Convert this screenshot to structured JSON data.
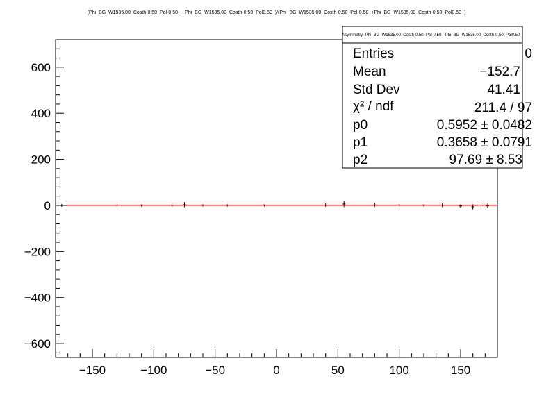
{
  "chart_data": {
    "type": "scatter",
    "title": "(Phi_BG_W1535.00_Costh-0.50_Pol-0.50_ - Phi_BG_W1535.00_Costh-0.50_Pol0.50_)/(Phi_BG_W1535.00_Costh-0.50_Pol-0.50_+Phi_BG_W1535.00_Costh-0.50_Pol0.50_)",
    "xlabel": "",
    "ylabel": "",
    "xlim": [
      -180,
      180
    ],
    "ylim": [
      -660,
      720
    ],
    "x_ticks": [
      -150,
      -100,
      -50,
      0,
      50,
      100,
      150
    ],
    "x_tick_labels": [
      "−150",
      "−100",
      "−50",
      "0",
      "50",
      "100",
      "150"
    ],
    "y_ticks": [
      -600,
      -400,
      -200,
      0,
      200,
      400,
      600
    ],
    "y_tick_labels": [
      "−600",
      "−400",
      "−200",
      "0",
      "200",
      "400",
      "600"
    ],
    "grid": false,
    "series": [
      {
        "x": [
          -175,
          -130,
          -110,
          -85,
          -75,
          -60,
          -40,
          -10,
          40,
          55,
          80,
          100,
          120,
          135,
          150,
          160,
          165,
          172
        ],
        "y": [
          0,
          0,
          0,
          0,
          3,
          0,
          0,
          0,
          1,
          6,
          2,
          0,
          0,
          0,
          -3,
          -6,
          0,
          -2
        ],
        "err": [
          3,
          2,
          2,
          2,
          8,
          2,
          2,
          2,
          4,
          10,
          6,
          2,
          2,
          4,
          5,
          8,
          4,
          6
        ]
      }
    ],
    "fit": {
      "x_range": [
        -180,
        180
      ],
      "y_value": 0.5952
    },
    "stats_box": {
      "title": "Asymmetry_Phi_BG_W1535.00_Costh-0.50_Pol-0.50_-Phi_BG_W1535.00_Costh-0.50_Pol0.50_",
      "rows": [
        {
          "label": "Entries",
          "value": "0"
        },
        {
          "label": "Mean",
          "value": "−152.7"
        },
        {
          "label": "Std Dev",
          "value": "41.41"
        },
        {
          "label": "χ² / ndf",
          "value": "211.4 / 97"
        },
        {
          "label": "p0",
          "value": "0.5952 ± 0.0482"
        },
        {
          "label": "p1",
          "value": "0.3658 ± 0.0791"
        },
        {
          "label": "p2",
          "value": "97.69 ± 8.53"
        }
      ]
    }
  },
  "colors": {
    "fit_line": "#ff0000",
    "data": "#000000",
    "axis": "#000000",
    "background": "#ffffff"
  }
}
